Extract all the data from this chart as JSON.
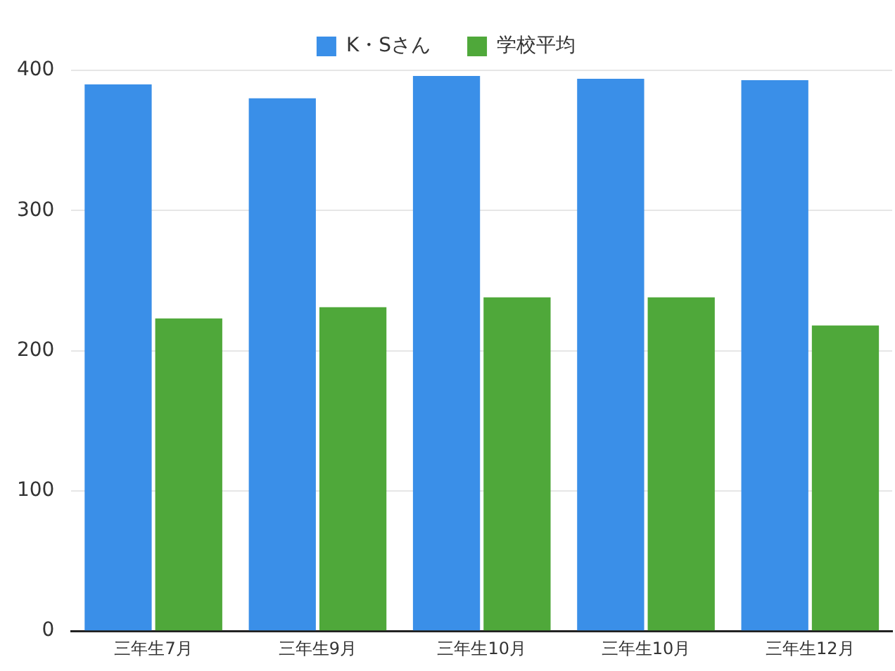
{
  "chart_data": {
    "type": "bar",
    "categories": [
      "三年生7月",
      "三年生9月",
      "三年生10月",
      "三年生10月",
      "三年生12月"
    ],
    "series": [
      {
        "name": "K・Sさん",
        "color": "#3a8fe8",
        "values": [
          390,
          380,
          396,
          394,
          393
        ]
      },
      {
        "name": "学校平均",
        "color": "#4fa83a",
        "values": [
          223,
          231,
          238,
          238,
          218
        ]
      }
    ],
    "ylim": [
      0,
      400
    ],
    "yticks": [
      0,
      100,
      200,
      300,
      400
    ],
    "grid": "y",
    "legend": "top"
  }
}
